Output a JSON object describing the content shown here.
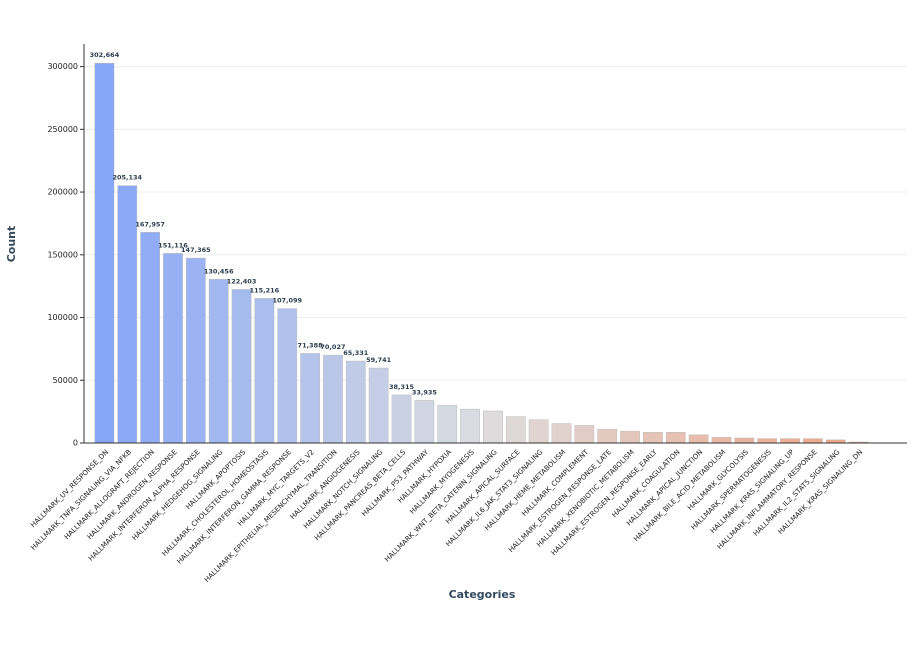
{
  "chart_data": {
    "type": "bar",
    "xlabel": "Categories",
    "ylabel": "Count",
    "categories": [
      "HALLMARK_UV_RESPONSE_DN",
      "HALLMARK_TNFA_SIGNALING_VIA_NFKB",
      "HALLMARK_ALLOGRAFT_REJECTION",
      "HALLMARK_ANDROGEN_RESPONSE",
      "HALLMARK_INTERFERON_ALPHA_RESPONSE",
      "HALLMARK_HEDGEHOG_SIGNALING",
      "HALLMARK_APOPTOSIS",
      "HALLMARK_CHOLESTEROL_HOMEOSTASIS",
      "HALLMARK_INTERFERON_GAMMA_RESPONSE",
      "HALLMARK_MYC_TARGETS_V2",
      "HALLMARK_EPITHELIAL_MESENCHYMAL_TRANSITION",
      "HALLMARK_ANGIOGENESIS",
      "HALLMARK_NOTCH_SIGNALING",
      "HALLMARK_PANCREAS_BETA_CELLS",
      "HALLMARK_P53_PATHWAY",
      "HALLMARK_HYPOXIA",
      "HALLMARK_MYOGENESIS",
      "HALLMARK_WNT_BETA_CATENIN_SIGNALING",
      "HALLMARK_APICAL_SURFACE",
      "HALLMARK_IL6_JAK_STAT3_SIGNALING",
      "HALLMARK_HEME_METABOLISM",
      "HALLMARK_COMPLEMENT",
      "HALLMARK_ESTROGEN_RESPONSE_LATE",
      "HALLMARK_XENOBIOTIC_METABOLISM",
      "HALLMARK_ESTROGEN_RESPONSE_EARLY",
      "HALLMARK_COAGULATION",
      "HALLMARK_APICAL_JUNCTION",
      "HALLMARK_BILE_ACID_METABOLISM",
      "HALLMARK_GLYCOLYSIS",
      "HALLMARK_SPERMATOGENESIS",
      "HALLMARK_KRAS_SIGNALING_UP",
      "HALLMARK_INFLAMMATORY_RESPONSE",
      "HALLMARK_IL2_STAT5_SIGNALING",
      "HALLMARK_KRAS_SIGNALING_DN"
    ],
    "values": [
      302664,
      205134,
      167957,
      151116,
      147365,
      130456,
      122403,
      115216,
      107099,
      71388,
      70027,
      65331,
      59741,
      38315,
      33935,
      30000,
      27000,
      25500,
      21000,
      18500,
      15500,
      14000,
      11000,
      9500,
      8500,
      8500,
      6500,
      4500,
      4000,
      3500,
      3500,
      3500,
      2500,
      800
    ],
    "value_labels": [
      "302,664",
      "205,134",
      "167,957",
      "151,116",
      "147,365",
      "130,456",
      "122,403",
      "115,216",
      "107,099",
      "71,388",
      "70,027",
      "65,331",
      "59,741",
      "38,315",
      "33,935",
      null,
      null,
      null,
      null,
      null,
      null,
      null,
      null,
      null,
      null,
      null,
      null,
      null,
      null,
      null,
      null,
      null,
      null,
      null
    ],
    "color_scale": [
      "#86a6f8",
      "#dcdddf",
      "#f0a485"
    ],
    "ylim": [
      0,
      318000
    ],
    "yticks": [
      0,
      50000,
      100000,
      150000,
      200000,
      250000,
      300000
    ],
    "grid": true
  }
}
